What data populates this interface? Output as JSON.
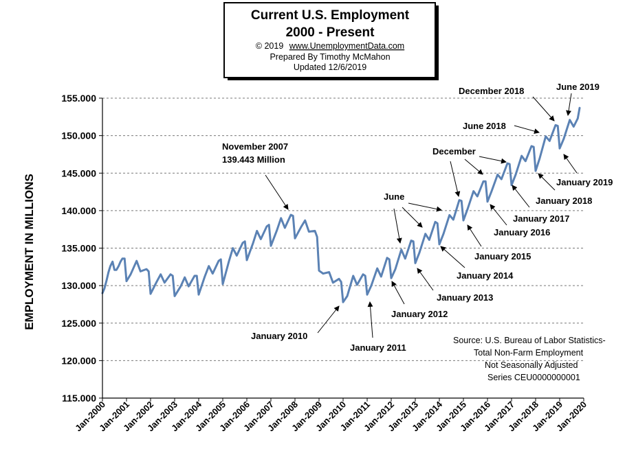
{
  "chart_data": {
    "type": "line",
    "title": "Current U.S. Employment",
    "subtitle": "2000 - Present",
    "credit_lines": [
      "© 2019",
      "www.UnemploymentData.com",
      "Prepared  By Timothy  McMahon",
      "Updated   12/6/2019"
    ],
    "ylabel": "EMPLOYMENT IN MILLIONS",
    "ylim": [
      115,
      155
    ],
    "yticks": [
      115,
      120,
      125,
      130,
      135,
      140,
      145,
      150,
      155
    ],
    "ytick_labels": [
      "115.000",
      "120.000",
      "125.000",
      "130.000",
      "135.000",
      "140.000",
      "145.000",
      "150.000",
      "155.000"
    ],
    "xlim": [
      2000,
      2020
    ],
    "xticks": [
      2000,
      2001,
      2002,
      2003,
      2004,
      2005,
      2006,
      2007,
      2008,
      2009,
      2010,
      2011,
      2012,
      2013,
      2014,
      2015,
      2016,
      2017,
      2018,
      2019,
      2020
    ],
    "xtick_labels": [
      "Jan-2000",
      "Jan-2001",
      "Jan-2002",
      "Jan-2003",
      "Jan-2004",
      "Jan-2005",
      "Jan-2006",
      "Jan-2007",
      "Jan-2008",
      "Jan-2009",
      "Jan-2010",
      "Jan-2011",
      "Jan-2012",
      "Jan-2013",
      "Jan-2014",
      "Jan-2015",
      "Jan-2016",
      "Jan-2017",
      "Jan-2018",
      "Jan-2019",
      "Jan-2020"
    ],
    "grid": "horizontal dashed",
    "line_color": "#5b82b4",
    "series": [
      {
        "name": "Total Non-Farm Employment (Not Seasonally Adjusted)",
        "points": [
          [
            2000.0,
            129.0
          ],
          [
            2000.08,
            129.6
          ],
          [
            2000.17,
            130.7
          ],
          [
            2000.25,
            131.8
          ],
          [
            2000.33,
            132.6
          ],
          [
            2000.42,
            133.2
          ],
          [
            2000.5,
            132.1
          ],
          [
            2000.58,
            132.1
          ],
          [
            2000.67,
            132.6
          ],
          [
            2000.75,
            133.2
          ],
          [
            2000.83,
            133.6
          ],
          [
            2000.92,
            133.6
          ],
          [
            2001.0,
            130.6
          ],
          [
            2001.17,
            131.5
          ],
          [
            2001.42,
            133.3
          ],
          [
            2001.58,
            131.9
          ],
          [
            2001.83,
            132.2
          ],
          [
            2001.92,
            131.9
          ],
          [
            2002.0,
            128.9
          ],
          [
            2002.25,
            130.5
          ],
          [
            2002.42,
            131.5
          ],
          [
            2002.58,
            130.4
          ],
          [
            2002.83,
            131.5
          ],
          [
            2002.92,
            131.3
          ],
          [
            2003.0,
            128.6
          ],
          [
            2003.25,
            129.9
          ],
          [
            2003.42,
            131.1
          ],
          [
            2003.58,
            129.9
          ],
          [
            2003.83,
            131.3
          ],
          [
            2003.92,
            131.3
          ],
          [
            2004.0,
            128.8
          ],
          [
            2004.25,
            131.2
          ],
          [
            2004.42,
            132.6
          ],
          [
            2004.58,
            131.6
          ],
          [
            2004.83,
            133.3
          ],
          [
            2004.92,
            133.5
          ],
          [
            2005.0,
            130.2
          ],
          [
            2005.25,
            133.2
          ],
          [
            2005.42,
            135.0
          ],
          [
            2005.58,
            134.0
          ],
          [
            2005.83,
            135.7
          ],
          [
            2005.92,
            135.9
          ],
          [
            2006.0,
            133.4
          ],
          [
            2006.25,
            135.6
          ],
          [
            2006.42,
            137.3
          ],
          [
            2006.58,
            136.2
          ],
          [
            2006.83,
            137.9
          ],
          [
            2006.92,
            138.1
          ],
          [
            2007.0,
            135.3
          ],
          [
            2007.25,
            137.4
          ],
          [
            2007.42,
            139.0
          ],
          [
            2007.58,
            137.7
          ],
          [
            2007.83,
            139.443
          ],
          [
            2007.92,
            139.3
          ],
          [
            2008.0,
            136.3
          ],
          [
            2008.25,
            137.8
          ],
          [
            2008.42,
            138.7
          ],
          [
            2008.58,
            137.2
          ],
          [
            2008.83,
            137.3
          ],
          [
            2008.92,
            136.5
          ],
          [
            2009.0,
            132.0
          ],
          [
            2009.17,
            131.6
          ],
          [
            2009.42,
            131.8
          ],
          [
            2009.58,
            130.4
          ],
          [
            2009.83,
            130.9
          ],
          [
            2009.92,
            130.5
          ],
          [
            2010.0,
            127.8
          ],
          [
            2010.17,
            128.6
          ],
          [
            2010.42,
            131.3
          ],
          [
            2010.58,
            130.1
          ],
          [
            2010.83,
            131.5
          ],
          [
            2010.92,
            131.3
          ],
          [
            2011.0,
            128.8
          ],
          [
            2011.17,
            130.0
          ],
          [
            2011.42,
            132.3
          ],
          [
            2011.58,
            131.2
          ],
          [
            2011.83,
            133.7
          ],
          [
            2011.92,
            133.5
          ],
          [
            2012.0,
            131.0
          ],
          [
            2012.17,
            132.2
          ],
          [
            2012.42,
            134.8
          ],
          [
            2012.58,
            133.6
          ],
          [
            2012.83,
            136.0
          ],
          [
            2012.92,
            135.9
          ],
          [
            2013.0,
            133.0
          ],
          [
            2013.17,
            134.4
          ],
          [
            2013.42,
            136.9
          ],
          [
            2013.58,
            136.1
          ],
          [
            2013.83,
            138.5
          ],
          [
            2013.92,
            138.3
          ],
          [
            2014.0,
            135.5
          ],
          [
            2014.17,
            136.9
          ],
          [
            2014.42,
            139.4
          ],
          [
            2014.58,
            138.8
          ],
          [
            2014.83,
            141.4
          ],
          [
            2014.92,
            141.3
          ],
          [
            2015.0,
            138.7
          ],
          [
            2015.17,
            140.2
          ],
          [
            2015.42,
            142.6
          ],
          [
            2015.58,
            141.9
          ],
          [
            2015.83,
            143.9
          ],
          [
            2015.92,
            143.9
          ],
          [
            2016.0,
            141.2
          ],
          [
            2016.17,
            142.6
          ],
          [
            2016.42,
            144.8
          ],
          [
            2016.58,
            144.2
          ],
          [
            2016.83,
            146.3
          ],
          [
            2016.92,
            146.2
          ],
          [
            2017.0,
            143.4
          ],
          [
            2017.17,
            144.8
          ],
          [
            2017.42,
            147.3
          ],
          [
            2017.58,
            146.6
          ],
          [
            2017.83,
            148.6
          ],
          [
            2017.92,
            148.5
          ],
          [
            2018.0,
            145.3
          ],
          [
            2018.17,
            147.0
          ],
          [
            2018.42,
            149.9
          ],
          [
            2018.58,
            149.3
          ],
          [
            2018.83,
            151.4
          ],
          [
            2018.92,
            151.3
          ],
          [
            2019.0,
            148.3
          ],
          [
            2019.17,
            149.6
          ],
          [
            2019.42,
            152.1
          ],
          [
            2019.58,
            151.2
          ],
          [
            2019.75,
            152.3
          ],
          [
            2019.83,
            153.7
          ]
        ]
      }
    ],
    "annotations": [
      {
        "name": "annotation-november-2007",
        "lines": [
          "November 2007",
          "139.443 Million"
        ]
      },
      {
        "name": "annotation-january-2010",
        "lines": [
          "January 2010"
        ]
      },
      {
        "name": "annotation-january-2011",
        "lines": [
          "January 2011"
        ]
      },
      {
        "name": "annotation-january-2012",
        "lines": [
          "January 2012"
        ]
      },
      {
        "name": "annotation-june",
        "lines": [
          "June"
        ]
      },
      {
        "name": "annotation-january-2013",
        "lines": [
          "January 2013"
        ]
      },
      {
        "name": "annotation-january-2014",
        "lines": [
          "January 2014"
        ]
      },
      {
        "name": "annotation-january-2015",
        "lines": [
          "January 2015"
        ]
      },
      {
        "name": "annotation-december",
        "lines": [
          "December"
        ]
      },
      {
        "name": "annotation-january-2016",
        "lines": [
          "January 2016"
        ]
      },
      {
        "name": "annotation-january-2017",
        "lines": [
          "January 2017"
        ]
      },
      {
        "name": "annotation-june-2018",
        "lines": [
          "June 2018"
        ]
      },
      {
        "name": "annotation-december-2018",
        "lines": [
          "December 2018"
        ]
      },
      {
        "name": "annotation-january-2018",
        "lines": [
          "January 2018"
        ]
      },
      {
        "name": "annotation-june-2019",
        "lines": [
          "June 2019"
        ]
      },
      {
        "name": "annotation-january-2019",
        "lines": [
          "January 2019"
        ]
      }
    ],
    "source_lines": [
      "Source: U.S.  Bureau of Labor Statistics-",
      "Total Non-Farm Employment",
      "Not Seasonally Adjusted",
      "Series CEU0000000001"
    ]
  }
}
